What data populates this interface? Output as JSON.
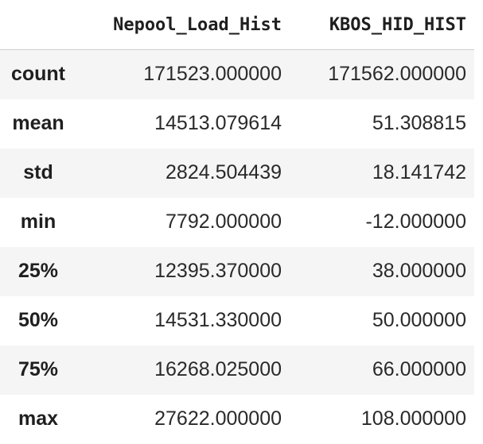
{
  "table": {
    "index_header": "",
    "columns": [
      "Nepool_Load_Hist",
      "KBOS_HID_HIST"
    ],
    "rows": [
      {
        "label": "count",
        "values": [
          "171523.000000",
          "171562.000000"
        ]
      },
      {
        "label": "mean",
        "values": [
          "14513.079614",
          "51.308815"
        ]
      },
      {
        "label": "std",
        "values": [
          "2824.504439",
          "18.141742"
        ]
      },
      {
        "label": "min",
        "values": [
          "7792.000000",
          "-12.000000"
        ]
      },
      {
        "label": "25%",
        "values": [
          "12395.370000",
          "38.000000"
        ]
      },
      {
        "label": "50%",
        "values": [
          "14531.330000",
          "50.000000"
        ]
      },
      {
        "label": "75%",
        "values": [
          "16268.025000",
          "66.000000"
        ]
      },
      {
        "label": "max",
        "values": [
          "27622.000000",
          "108.000000"
        ]
      }
    ]
  }
}
